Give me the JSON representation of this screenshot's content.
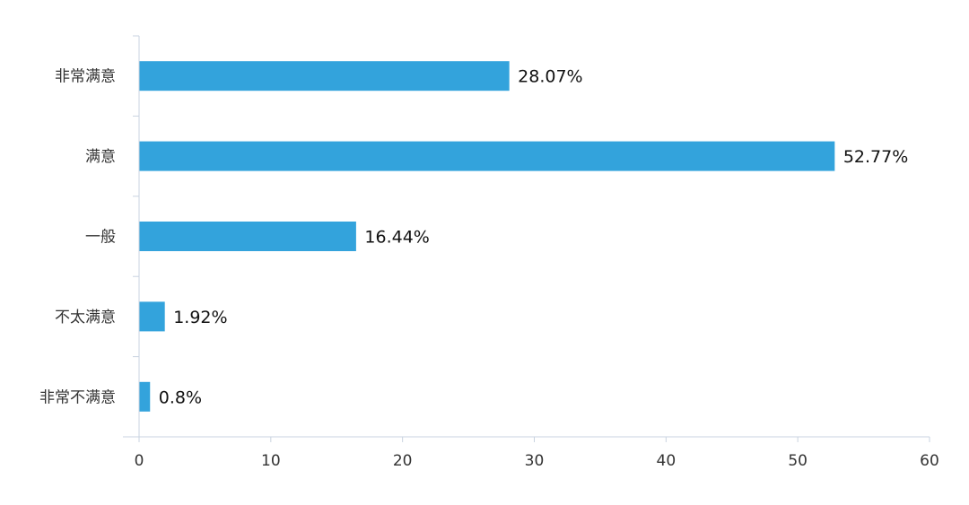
{
  "chart_data": {
    "type": "bar",
    "orientation": "horizontal",
    "categories": [
      "非常满意",
      "满意",
      "一般",
      "不太满意",
      "非常不满意"
    ],
    "values": [
      28.07,
      52.77,
      16.44,
      1.92,
      0.8
    ],
    "data_labels": [
      "28.07%",
      "52.77%",
      "16.44%",
      "1.92%",
      "0.8%"
    ],
    "x_ticks": [
      "0",
      "10",
      "20",
      "30",
      "40",
      "50",
      "60"
    ],
    "xlim": [
      0,
      60
    ],
    "title": "",
    "xlabel": "",
    "ylabel": "",
    "grid": false,
    "legend": "none",
    "bar_color": "#33a3dc",
    "axis_color": "#c9d3e0"
  }
}
